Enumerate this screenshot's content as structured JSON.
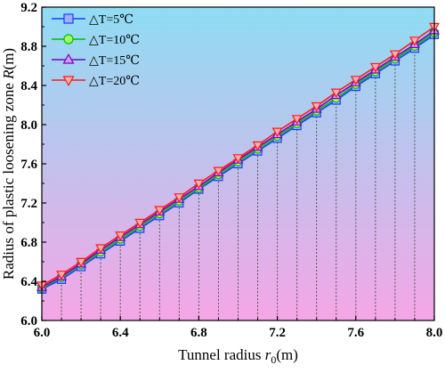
{
  "chart_data": {
    "type": "line",
    "title": "",
    "xlabel_parts": [
      "Tunnel radius ",
      "r",
      "0",
      "(m)"
    ],
    "ylabel_parts": [
      "Radius of plastic loosening zone ",
      "R",
      "(m)"
    ],
    "xlim": [
      6.0,
      8.0
    ],
    "ylim": [
      6.0,
      9.2
    ],
    "x_ticks": [
      "6.0",
      "6.4",
      "6.8",
      "7.2",
      "7.6",
      "8.0"
    ],
    "y_ticks": [
      "6.0",
      "6.4",
      "6.8",
      "7.2",
      "7.6",
      "8.0",
      "8.4",
      "8.8",
      "9.2"
    ],
    "x": [
      6.0,
      6.1,
      6.2,
      6.3,
      6.4,
      6.5,
      6.6,
      6.7,
      6.8,
      6.9,
      7.0,
      7.1,
      7.2,
      7.3,
      7.4,
      7.5,
      7.6,
      7.7,
      7.8,
      7.9,
      8.0
    ],
    "background": {
      "gradient_top": "#8fdcf3",
      "gradient_bottom": "#f5a6e6"
    },
    "drop_lines": true,
    "legend_placement": "top-left",
    "series": [
      {
        "name": "△T=5℃",
        "marker": "square",
        "color": "#1e3cff",
        "fill": "#9fb0ff",
        "values": [
          6.32,
          6.42,
          6.55,
          6.68,
          6.81,
          6.94,
          7.07,
          7.2,
          7.34,
          7.47,
          7.6,
          7.73,
          7.86,
          7.99,
          8.12,
          8.25,
          8.39,
          8.52,
          8.65,
          8.78,
          8.92
        ]
      },
      {
        "name": "△T=10℃",
        "marker": "circle",
        "color": "#00c000",
        "fill": "#a6ff66",
        "values": [
          6.33,
          6.44,
          6.57,
          6.7,
          6.83,
          6.96,
          7.09,
          7.22,
          7.35,
          7.49,
          7.62,
          7.75,
          7.88,
          8.01,
          8.14,
          8.27,
          8.41,
          8.54,
          8.67,
          8.8,
          8.94
        ]
      },
      {
        "name": "△T=15℃",
        "marker": "triangle-up",
        "color": "#7a00c8",
        "fill": "#c8a0ff",
        "values": [
          6.34,
          6.45,
          6.58,
          6.72,
          6.85,
          6.98,
          7.11,
          7.24,
          7.37,
          7.51,
          7.64,
          7.77,
          7.9,
          8.03,
          8.16,
          8.3,
          8.43,
          8.56,
          8.69,
          8.82,
          8.96
        ]
      },
      {
        "name": "△T=20℃",
        "marker": "triangle-down",
        "color": "#ff1a1a",
        "fill": "#ffb0b0",
        "values": [
          6.36,
          6.47,
          6.6,
          6.74,
          6.87,
          7.0,
          7.13,
          7.26,
          7.4,
          7.53,
          7.66,
          7.79,
          7.93,
          8.06,
          8.19,
          8.33,
          8.46,
          8.59,
          8.72,
          8.86,
          9.0
        ]
      }
    ]
  }
}
